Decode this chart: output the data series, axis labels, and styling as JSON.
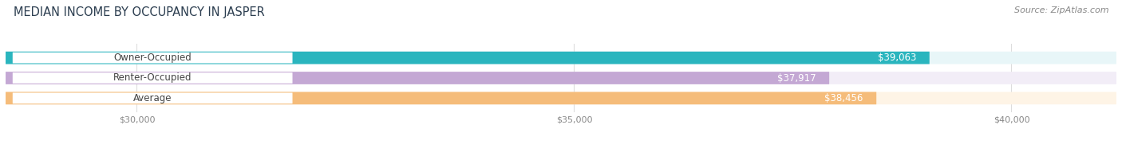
{
  "title": "MEDIAN INCOME BY OCCUPANCY IN JASPER",
  "source": "Source: ZipAtlas.com",
  "categories": [
    "Owner-Occupied",
    "Renter-Occupied",
    "Average"
  ],
  "values": [
    39063,
    37917,
    38456
  ],
  "labels": [
    "$39,063",
    "$37,917",
    "$38,456"
  ],
  "bar_colors": [
    "#2ab5be",
    "#c4a8d4",
    "#f5bc7a"
  ],
  "bar_bg_colors": [
    "#e8f6f8",
    "#f2edf7",
    "#fef4e6"
  ],
  "xlim_min": 28500,
  "xlim_max": 41200,
  "xticks": [
    30000,
    35000,
    40000
  ],
  "xtick_labels": [
    "$30,000",
    "$35,000",
    "$40,000"
  ],
  "title_fontsize": 10.5,
  "source_fontsize": 8,
  "label_fontsize": 8.5,
  "bar_label_fontsize": 8.5,
  "background_color": "#ffffff",
  "bar_height": 0.62,
  "label_pill_color": "#ffffff",
  "label_text_color": "#444444",
  "value_text_color": "#ffffff",
  "grid_color": "#dddddd",
  "tick_color": "#888888"
}
